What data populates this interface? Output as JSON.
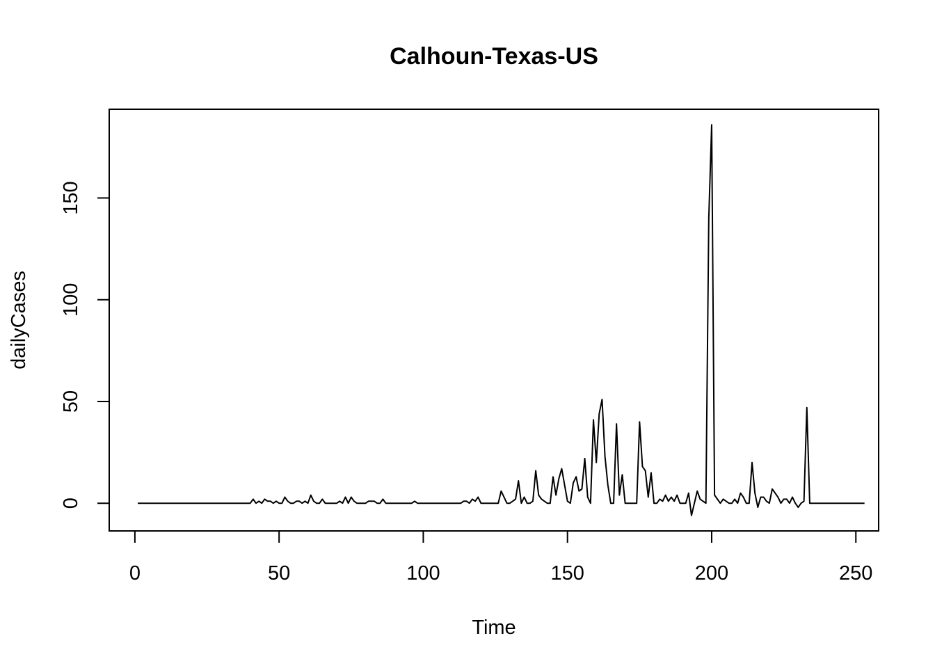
{
  "chart_data": {
    "type": "line",
    "title": "Calhoun-Texas-US",
    "xlabel": "Time",
    "ylabel": "dailyCases",
    "xlim": [
      -8.9,
      257.9
    ],
    "ylim": [
      -13.6,
      193.6
    ],
    "x_ticks": [
      0,
      50,
      100,
      150,
      200,
      250
    ],
    "y_ticks": [
      0,
      50,
      100,
      150
    ],
    "grid": false,
    "legend": "none",
    "line_color": "#000000",
    "series": [
      {
        "x_start": 1,
        "values": [
          0,
          0,
          0,
          0,
          0,
          0,
          0,
          0,
          0,
          0,
          0,
          0,
          0,
          0,
          0,
          0,
          0,
          0,
          0,
          0,
          0,
          0,
          0,
          0,
          0,
          0,
          0,
          0,
          0,
          0,
          0,
          0,
          0,
          0,
          0,
          0,
          0,
          0,
          0,
          0,
          2,
          0,
          1,
          0,
          2,
          1,
          1,
          0,
          1,
          0,
          0,
          3,
          1,
          0,
          0,
          1,
          1,
          0,
          1,
          0,
          4,
          1,
          0,
          0,
          2,
          0,
          0,
          0,
          0,
          0,
          1,
          0,
          3,
          0,
          3,
          1,
          0,
          0,
          0,
          0,
          1,
          1,
          1,
          0,
          0,
          2,
          0,
          0,
          0,
          0,
          0,
          0,
          0,
          0,
          0,
          0,
          1,
          0,
          0,
          0,
          0,
          0,
          0,
          0,
          0,
          0,
          0,
          0,
          0,
          0,
          0,
          0,
          0,
          1,
          1,
          0,
          2,
          1,
          3,
          0,
          0,
          0,
          0,
          0,
          0,
          0,
          6,
          3,
          0,
          0,
          1,
          2,
          11,
          0,
          3,
          0,
          0,
          1,
          16,
          4,
          2,
          1,
          0,
          0,
          13,
          4,
          12,
          17,
          9,
          1,
          0,
          10,
          13,
          6,
          7,
          22,
          3,
          0,
          41,
          20,
          44,
          51,
          23,
          9,
          0,
          0,
          39,
          4,
          14,
          0,
          0,
          0,
          0,
          0,
          40,
          18,
          16,
          3,
          15,
          0,
          0,
          2,
          1,
          4,
          1,
          3,
          1,
          4,
          0,
          0,
          0,
          5,
          -6,
          0,
          6,
          2,
          1,
          0,
          140,
          186,
          4,
          2,
          0,
          2,
          1,
          0,
          0,
          2,
          0,
          5,
          3,
          0,
          0,
          20,
          5,
          -2,
          3,
          3,
          1,
          0,
          7,
          5,
          3,
          0,
          2,
          2,
          0,
          3,
          0,
          -2,
          0,
          1,
          47,
          0,
          0,
          0,
          0,
          0,
          0,
          0,
          0,
          0,
          0,
          0,
          0,
          0,
          0,
          0,
          0,
          0,
          0,
          0,
          0
        ]
      }
    ]
  }
}
